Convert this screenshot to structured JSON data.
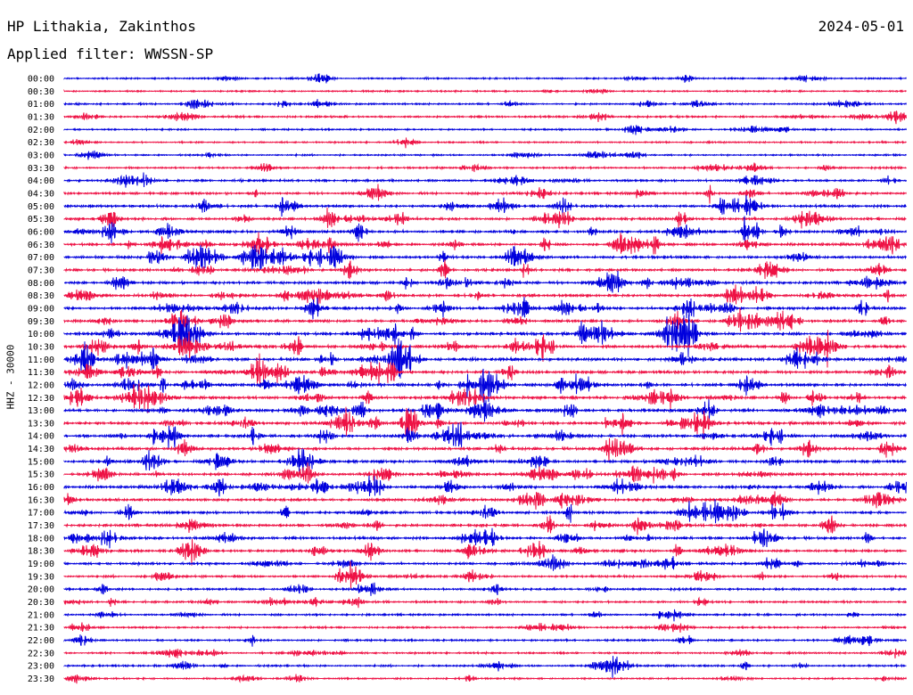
{
  "header": {
    "station": "HP Lithakia, Zakinthos",
    "date": "2024-05-01",
    "filter_label": "Applied filter: WWSSN-SP"
  },
  "chart_data": {
    "type": "line",
    "title": "HP Lithakia, Zakinthos",
    "date": "2024-05-01",
    "filter": "WWSSN-SP",
    "ylabel": "HHZ - 30000",
    "row_interval_minutes": 30,
    "tick_labels": [
      "00:00",
      "00:30",
      "01:00",
      "01:30",
      "02:00",
      "02:30",
      "03:00",
      "03:30",
      "04:00",
      "04:30",
      "05:00",
      "05:30",
      "06:00",
      "06:30",
      "07:00",
      "07:30",
      "08:00",
      "08:30",
      "09:00",
      "09:30",
      "10:00",
      "10:30",
      "11:00",
      "11:30",
      "12:00",
      "12:30",
      "13:00",
      "13:30",
      "14:00",
      "14:30",
      "15:00",
      "15:30",
      "16:00",
      "16:30",
      "17:00",
      "17:30",
      "18:00",
      "18:30",
      "19:00",
      "19:30",
      "20:00",
      "20:30",
      "21:00",
      "21:30",
      "22:00",
      "22:30",
      "23:00",
      "23:30"
    ],
    "activity_level": [
      0.3,
      0.25,
      0.4,
      0.6,
      0.3,
      0.3,
      0.3,
      0.5,
      0.8,
      0.8,
      1.0,
      1.1,
      1.2,
      1.2,
      1.2,
      1.1,
      1.3,
      1.3,
      1.2,
      1.2,
      1.4,
      1.4,
      1.5,
      1.4,
      1.4,
      1.4,
      1.5,
      1.4,
      1.3,
      1.3,
      1.2,
      1.2,
      1.2,
      1.2,
      1.2,
      1.2,
      1.1,
      1.1,
      0.9,
      0.8,
      0.6,
      0.6,
      0.5,
      0.5,
      0.5,
      0.4,
      0.5,
      0.3
    ],
    "colors": {
      "even_rows": "#0000dd",
      "odd_rows": "#ee1144"
    },
    "grid": false
  }
}
